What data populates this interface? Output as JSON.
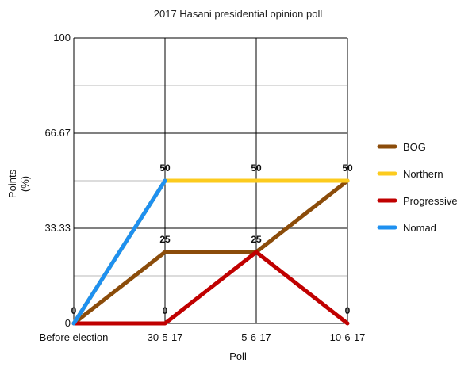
{
  "chart_data": {
    "type": "line",
    "title": "2017 Hasani presidential opinion poll",
    "xlabel": "Poll",
    "ylabel_line1": "Points",
    "ylabel_line2": "(%)",
    "categories": [
      "Before election",
      "30-5-17",
      "5-6-17",
      "10-6-17"
    ],
    "ylim": [
      0,
      100
    ],
    "yticks": [
      "0",
      "33.33",
      "66.67",
      "100"
    ],
    "grid": true,
    "legend_position": "right",
    "series": [
      {
        "name": "BOG",
        "color": "#8B4C0A",
        "values": [
          0,
          25,
          25,
          50
        ]
      },
      {
        "name": "Northern",
        "color": "#FCCB1E",
        "values": [
          0,
          50,
          50,
          50
        ]
      },
      {
        "name": "Progressive",
        "color": "#C00000",
        "values": [
          0,
          0,
          25,
          0
        ]
      },
      {
        "name": "Nomad",
        "color": "#1E90F0",
        "values": [
          0,
          50,
          null,
          null
        ]
      }
    ],
    "data_labels": [
      {
        "category": 0,
        "value": 0,
        "text": "0"
      },
      {
        "category": 1,
        "value": 50,
        "text": "50"
      },
      {
        "category": 1,
        "value": 25,
        "text": "25"
      },
      {
        "category": 1,
        "value": 0,
        "text": "0"
      },
      {
        "category": 2,
        "value": 50,
        "text": "50"
      },
      {
        "category": 2,
        "value": 25,
        "text": "25"
      },
      {
        "category": 3,
        "value": 50,
        "text": "50"
      },
      {
        "category": 3,
        "value": 0,
        "text": "0"
      }
    ]
  }
}
